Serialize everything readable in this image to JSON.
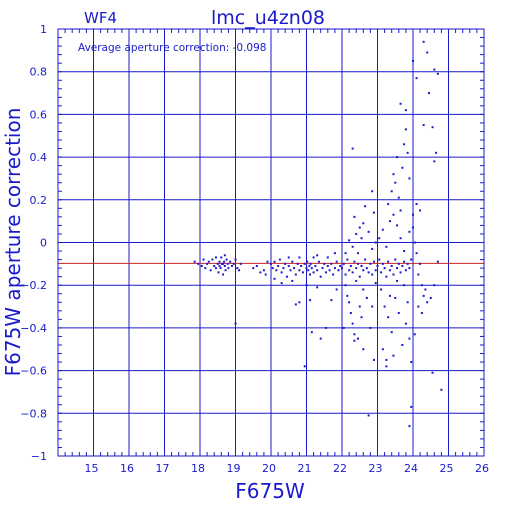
{
  "chart_data": {
    "type": "scatter",
    "chip_label": "WF4",
    "title": "lmc_u4zn08",
    "annotation": "Average aperture correction:  -0.098",
    "xlabel": "F675W",
    "ylabel": "F675W aperture correction",
    "xlim": [
      14,
      26
    ],
    "ylim": [
      -1,
      1
    ],
    "x_ticks": [
      15,
      16,
      17,
      18,
      19,
      20,
      21,
      22,
      23,
      24,
      25,
      26
    ],
    "y_ticks": [
      1,
      0.8,
      0.6,
      0.4,
      0.2,
      0,
      -0.2,
      -0.4,
      -0.6,
      -0.8,
      -1
    ],
    "y_tick_labels": [
      "1",
      "0.8",
      "0.6",
      "0.4",
      "0.2",
      "0",
      "−0.2",
      "−0.4",
      "−0.6",
      "−0.8",
      "−1"
    ],
    "grid": true,
    "reference_line": -0.098,
    "colors": {
      "axes": "#1a1acc",
      "points": "#1a1acc",
      "reference_line": "#cc2222"
    },
    "points": [
      [
        17.85,
        -0.09
      ],
      [
        17.95,
        -0.1
      ],
      [
        18.05,
        -0.11
      ],
      [
        18.1,
        -0.08
      ],
      [
        18.15,
        -0.12
      ],
      [
        18.2,
        -0.1
      ],
      [
        18.25,
        -0.09
      ],
      [
        18.3,
        -0.13
      ],
      [
        18.35,
        -0.08
      ],
      [
        18.4,
        -0.11
      ],
      [
        18.45,
        -0.07
      ],
      [
        18.5,
        -0.1
      ],
      [
        18.52,
        -0.14
      ],
      [
        18.55,
        -0.09
      ],
      [
        18.58,
        -0.12
      ],
      [
        18.6,
        -0.07
      ],
      [
        18.62,
        -0.1
      ],
      [
        18.65,
        -0.15
      ],
      [
        18.68,
        -0.09
      ],
      [
        18.7,
        -0.11
      ],
      [
        18.72,
        -0.13
      ],
      [
        18.75,
        -0.08
      ],
      [
        18.78,
        -0.1
      ],
      [
        18.8,
        -0.12
      ],
      [
        18.85,
        -0.09
      ],
      [
        18.9,
        -0.11
      ],
      [
        18.95,
        -0.1
      ],
      [
        19.0,
        -0.08
      ],
      [
        19.05,
        -0.12
      ],
      [
        19.1,
        -0.13
      ],
      [
        19.15,
        -0.1
      ],
      [
        19.0,
        -0.38
      ],
      [
        18.7,
        -0.06
      ],
      [
        18.45,
        -0.12
      ],
      [
        18.55,
        -0.11
      ],
      [
        18.65,
        -0.1
      ],
      [
        19.5,
        -0.12
      ],
      [
        19.6,
        -0.11
      ],
      [
        19.7,
        -0.14
      ],
      [
        19.8,
        -0.13
      ],
      [
        19.85,
        -0.15
      ],
      [
        19.9,
        -0.09
      ],
      [
        20.0,
        -0.1
      ],
      [
        20.05,
        -0.12
      ],
      [
        20.1,
        -0.09
      ],
      [
        20.15,
        -0.13
      ],
      [
        20.2,
        -0.11
      ],
      [
        20.25,
        -0.08
      ],
      [
        20.3,
        -0.14
      ],
      [
        20.35,
        -0.12
      ],
      [
        20.4,
        -0.1
      ],
      [
        20.45,
        -0.16
      ],
      [
        20.5,
        -0.11
      ],
      [
        20.55,
        -0.13
      ],
      [
        20.6,
        -0.09
      ],
      [
        20.65,
        -0.12
      ],
      [
        20.7,
        -0.15
      ],
      [
        20.75,
        -0.1
      ],
      [
        20.8,
        -0.13
      ],
      [
        20.85,
        -0.11
      ],
      [
        20.9,
        -0.14
      ],
      [
        20.95,
        -0.1
      ],
      [
        21.0,
        -0.12
      ],
      [
        21.02,
        -0.09
      ],
      [
        21.05,
        -0.13
      ],
      [
        21.08,
        -0.11
      ],
      [
        21.1,
        -0.15
      ],
      [
        21.12,
        -0.1
      ],
      [
        21.15,
        -0.12
      ],
      [
        21.2,
        -0.14
      ],
      [
        21.25,
        -0.11
      ],
      [
        21.3,
        -0.13
      ],
      [
        21.35,
        -0.09
      ],
      [
        21.4,
        -0.16
      ],
      [
        21.45,
        -0.12
      ],
      [
        21.5,
        -0.1
      ],
      [
        21.55,
        -0.14
      ],
      [
        21.6,
        -0.11
      ],
      [
        21.65,
        -0.13
      ],
      [
        21.7,
        -0.1
      ],
      [
        21.75,
        -0.15
      ],
      [
        21.8,
        -0.12
      ],
      [
        21.85,
        -0.09
      ],
      [
        21.9,
        -0.13
      ],
      [
        21.95,
        -0.11
      ],
      [
        20.1,
        -0.17
      ],
      [
        20.3,
        -0.19
      ],
      [
        20.6,
        -0.18
      ],
      [
        20.7,
        -0.29
      ],
      [
        20.8,
        -0.28
      ],
      [
        20.95,
        -0.58
      ],
      [
        21.0,
        -0.2
      ],
      [
        21.1,
        -0.27
      ],
      [
        21.15,
        -0.42
      ],
      [
        21.3,
        -0.21
      ],
      [
        21.4,
        -0.45
      ],
      [
        21.55,
        -0.4
      ],
      [
        21.7,
        -0.27
      ],
      [
        21.85,
        -0.22
      ],
      [
        20.5,
        -0.07
      ],
      [
        21.3,
        -0.06
      ],
      [
        21.6,
        -0.07
      ],
      [
        21.8,
        -0.05
      ],
      [
        20.8,
        -0.07
      ],
      [
        21.2,
        -0.07
      ],
      [
        22.0,
        -0.12
      ],
      [
        22.05,
        -0.1
      ],
      [
        22.1,
        -0.15
      ],
      [
        22.15,
        -0.08
      ],
      [
        22.2,
        -0.13
      ],
      [
        22.25,
        -0.11
      ],
      [
        22.3,
        -0.14
      ],
      [
        22.35,
        -0.09
      ],
      [
        22.4,
        -0.12
      ],
      [
        22.45,
        -0.1
      ],
      [
        22.5,
        -0.16
      ],
      [
        22.55,
        -0.11
      ],
      [
        22.6,
        -0.13
      ],
      [
        22.65,
        -0.08
      ],
      [
        22.7,
        -0.12
      ],
      [
        22.75,
        -0.14
      ],
      [
        22.8,
        -0.1
      ],
      [
        22.85,
        -0.15
      ],
      [
        22.9,
        -0.09
      ],
      [
        22.95,
        -0.13
      ],
      [
        22.1,
        -0.05
      ],
      [
        22.3,
        -0.02
      ],
      [
        22.2,
        0.01
      ],
      [
        22.4,
        0.04
      ],
      [
        22.5,
        0.07
      ],
      [
        22.6,
        0.09
      ],
      [
        22.35,
        0.12
      ],
      [
        22.65,
        0.17
      ],
      [
        22.55,
        0.02
      ],
      [
        22.75,
        0.05
      ],
      [
        22.85,
        -0.03
      ],
      [
        22.95,
        0.0
      ],
      [
        22.1,
        -0.2
      ],
      [
        22.15,
        -0.25
      ],
      [
        22.2,
        -0.28
      ],
      [
        22.25,
        -0.33
      ],
      [
        22.3,
        -0.38
      ],
      [
        22.35,
        -0.43
      ],
      [
        22.45,
        -0.45
      ],
      [
        22.5,
        -0.3
      ],
      [
        22.55,
        -0.35
      ],
      [
        22.6,
        -0.22
      ],
      [
        22.7,
        -0.26
      ],
      [
        22.8,
        -0.4
      ],
      [
        22.9,
        -0.55
      ],
      [
        22.75,
        -0.81
      ],
      [
        22.85,
        -0.3
      ],
      [
        22.95,
        -0.19
      ],
      [
        22.05,
        -0.4
      ],
      [
        22.4,
        -0.18
      ],
      [
        22.6,
        -0.5
      ],
      [
        22.35,
        -0.46
      ],
      [
        22.3,
        0.44
      ],
      [
        22.85,
        0.24
      ],
      [
        22.9,
        0.14
      ],
      [
        22.45,
        -0.05
      ],
      [
        23.0,
        -0.11
      ],
      [
        23.05,
        -0.08
      ],
      [
        23.1,
        -0.14
      ],
      [
        23.15,
        -0.1
      ],
      [
        23.2,
        -0.12
      ],
      [
        23.25,
        -0.16
      ],
      [
        23.3,
        -0.09
      ],
      [
        23.35,
        -0.13
      ],
      [
        23.4,
        -0.11
      ],
      [
        23.45,
        -0.15
      ],
      [
        23.5,
        -0.08
      ],
      [
        23.55,
        -0.12
      ],
      [
        23.6,
        -0.1
      ],
      [
        23.65,
        -0.14
      ],
      [
        23.7,
        -0.11
      ],
      [
        23.75,
        -0.09
      ],
      [
        23.8,
        -0.13
      ],
      [
        23.85,
        -0.1
      ],
      [
        23.9,
        -0.12
      ],
      [
        23.95,
        -0.08
      ],
      [
        23.05,
        0.02
      ],
      [
        23.15,
        0.06
      ],
      [
        23.25,
        -0.02
      ],
      [
        23.35,
        0.1
      ],
      [
        23.3,
        0.18
      ],
      [
        23.4,
        0.24
      ],
      [
        23.45,
        0.32
      ],
      [
        23.5,
        0.28
      ],
      [
        23.55,
        0.4
      ],
      [
        23.6,
        0.21
      ],
      [
        23.65,
        0.15
      ],
      [
        23.7,
        0.35
      ],
      [
        23.75,
        0.46
      ],
      [
        23.8,
        0.53
      ],
      [
        23.85,
        0.42
      ],
      [
        23.9,
        0.05
      ],
      [
        23.45,
        0.13
      ],
      [
        23.55,
        0.08
      ],
      [
        23.65,
        0.02
      ],
      [
        23.75,
        -0.04
      ],
      [
        23.1,
        -0.22
      ],
      [
        23.2,
        -0.3
      ],
      [
        23.3,
        -0.35
      ],
      [
        23.4,
        -0.42
      ],
      [
        23.5,
        -0.26
      ],
      [
        23.6,
        -0.33
      ],
      [
        23.7,
        -0.48
      ],
      [
        23.8,
        -0.38
      ],
      [
        23.9,
        -0.45
      ],
      [
        23.95,
        -0.56
      ],
      [
        23.25,
        -0.55
      ],
      [
        23.35,
        -0.25
      ],
      [
        23.55,
        -0.18
      ],
      [
        23.75,
        -0.2
      ],
      [
        23.85,
        -0.28
      ],
      [
        23.15,
        -0.5
      ],
      [
        23.65,
        0.65
      ],
      [
        23.8,
        0.62
      ],
      [
        23.9,
        0.3
      ],
      [
        23.95,
        -0.77
      ],
      [
        23.9,
        -0.86
      ],
      [
        23.25,
        -0.58
      ],
      [
        23.45,
        -0.53
      ],
      [
        24.0,
        0.07
      ],
      [
        24.05,
        0.0
      ],
      [
        24.1,
        -0.05
      ],
      [
        24.15,
        -0.15
      ],
      [
        24.2,
        -0.1
      ],
      [
        24.25,
        -0.2
      ],
      [
        24.3,
        -0.25
      ],
      [
        24.35,
        -0.22
      ],
      [
        24.4,
        -0.28
      ],
      [
        24.5,
        -0.26
      ],
      [
        24.55,
        -0.61
      ],
      [
        24.6,
        -0.2
      ],
      [
        24.7,
        -0.09
      ],
      [
        24.8,
        -0.69
      ],
      [
        24.0,
        0.13
      ],
      [
        24.1,
        0.18
      ],
      [
        24.2,
        0.15
      ],
      [
        24.3,
        0.55
      ],
      [
        24.45,
        0.7
      ],
      [
        24.6,
        0.38
      ],
      [
        24.65,
        0.42
      ],
      [
        24.55,
        0.54
      ],
      [
        24.1,
        0.77
      ],
      [
        24.3,
        0.94
      ],
      [
        24.4,
        0.89
      ],
      [
        24.6,
        0.81
      ],
      [
        24.7,
        0.79
      ],
      [
        24.0,
        0.85
      ],
      [
        24.15,
        -0.3
      ],
      [
        24.05,
        -0.43
      ],
      [
        24.25,
        -0.33
      ]
    ]
  }
}
